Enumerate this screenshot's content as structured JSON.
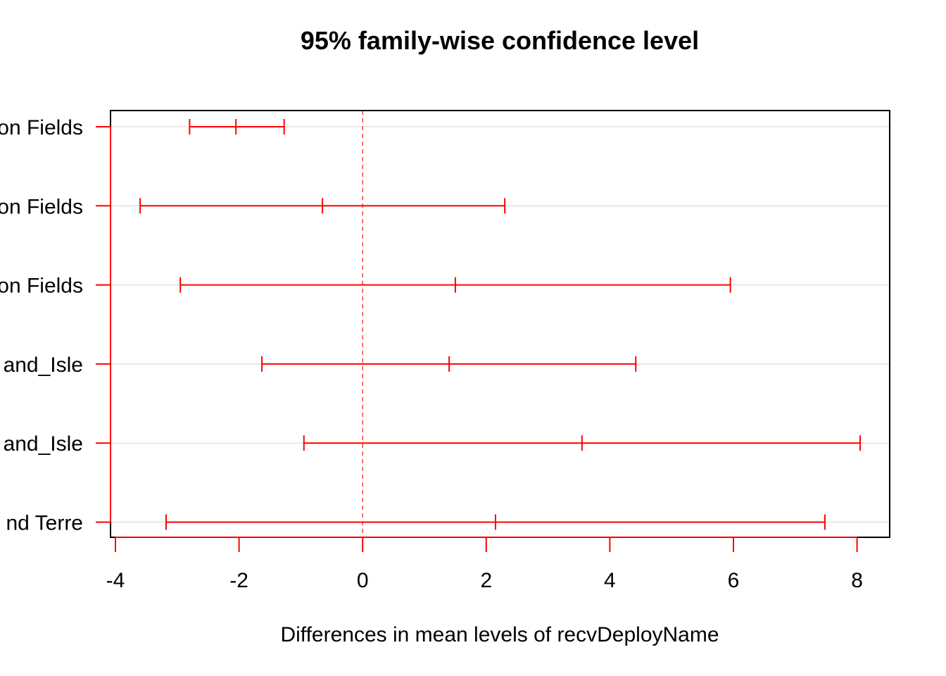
{
  "chart_data": {
    "type": "errorbar",
    "title": "95% family-wise confidence level",
    "xlabel": "Differences in mean levels of recvDeployName",
    "ylabel": "",
    "xlim": [
      -4.1,
      8.5
    ],
    "xticks": [
      -4,
      -2,
      0,
      2,
      4,
      6,
      8
    ],
    "xtick_labels": [
      "-4",
      "-2",
      "0",
      "2",
      "4",
      "6",
      "8"
    ],
    "reference_line": 0,
    "grid": true,
    "colors": {
      "interval": "#ff0000",
      "reference": "#ff0000",
      "grid": "#d3d3d3",
      "frame": "#000000"
    },
    "comparisons": [
      {
        "label": "on Fields",
        "lower": -2.8,
        "estimate": -2.05,
        "upper": -1.27
      },
      {
        "label": "on Fields",
        "lower": -3.6,
        "estimate": -0.65,
        "upper": 2.3
      },
      {
        "label": "on Fields",
        "lower": -2.95,
        "estimate": 1.5,
        "upper": 5.95
      },
      {
        "label": "and_Isle",
        "lower": -1.63,
        "estimate": 1.4,
        "upper": 4.42
      },
      {
        "label": "and_Isle",
        "lower": -0.95,
        "estimate": 3.55,
        "upper": 8.05
      },
      {
        "label": "nd Terre",
        "lower": -3.18,
        "estimate": 2.15,
        "upper": 7.48
      }
    ]
  }
}
